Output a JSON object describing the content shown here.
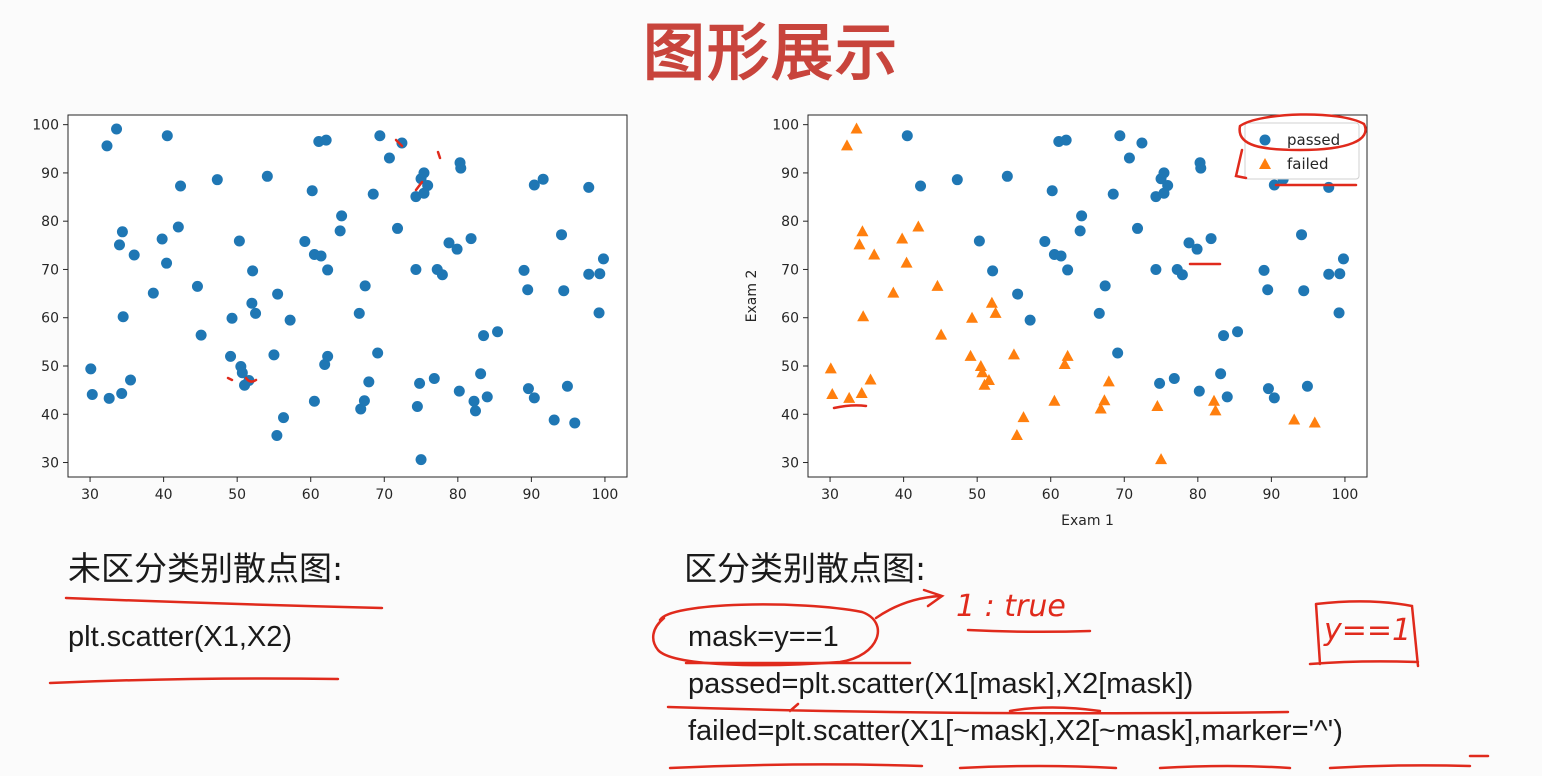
{
  "slide": {
    "title": "图形展示"
  },
  "left": {
    "caption": "未区分类别散点图:",
    "code": [
      "plt.scatter(X1,X2)"
    ]
  },
  "right": {
    "caption": "区分类别散点图:",
    "code": [
      "mask=y==1",
      "passed=plt.scatter(X1[mask],X2[mask])",
      "failed=plt.scatter(X1[~mask],X2[~mask],marker='^')"
    ]
  },
  "annotations": {
    "note1": "1 : true",
    "note2": "y==1"
  },
  "colors": {
    "passed": "#1f77b4",
    "failed": "#ff7f0e",
    "ink": "#e02a1c",
    "title": "#c8443c"
  },
  "chart_data": [
    {
      "type": "scatter",
      "title": "",
      "xlabel": "",
      "ylabel": "",
      "xlim": [
        27,
        103
      ],
      "ylim": [
        27,
        102
      ],
      "xticks": [
        30,
        40,
        50,
        60,
        70,
        80,
        90,
        100
      ],
      "yticks": [
        30,
        40,
        50,
        60,
        70,
        80,
        90,
        100
      ],
      "series": [
        {
          "marker": "circle",
          "color": "#1f77b4",
          "points": [
            [
              30.1,
              49.4
            ],
            [
              30.3,
              44.1
            ],
            [
              32.6,
              43.3
            ],
            [
              32.3,
              95.6
            ],
            [
              33.6,
              99.1
            ],
            [
              34.0,
              75.1
            ],
            [
              34.3,
              44.3
            ],
            [
              34.4,
              77.8
            ],
            [
              34.5,
              60.2
            ],
            [
              35.5,
              47.1
            ],
            [
              36.0,
              73.0
            ],
            [
              38.6,
              65.1
            ],
            [
              39.8,
              76.3
            ],
            [
              40.4,
              71.3
            ],
            [
              40.5,
              97.7
            ],
            [
              42.0,
              78.8
            ],
            [
              42.3,
              87.3
            ],
            [
              44.6,
              66.5
            ],
            [
              45.1,
              56.4
            ],
            [
              47.3,
              88.6
            ],
            [
              49.1,
              52.0
            ],
            [
              49.3,
              59.9
            ],
            [
              50.3,
              75.9
            ],
            [
              50.5,
              49.9
            ],
            [
              50.7,
              48.6
            ],
            [
              51.0,
              46.0
            ],
            [
              51.6,
              47.0
            ],
            [
              52.0,
              63.0
            ],
            [
              52.1,
              69.7
            ],
            [
              52.5,
              60.9
            ],
            [
              54.1,
              89.3
            ],
            [
              55.0,
              52.3
            ],
            [
              55.4,
              35.6
            ],
            [
              55.5,
              64.9
            ],
            [
              56.3,
              39.3
            ],
            [
              57.2,
              59.5
            ],
            [
              59.2,
              75.8
            ],
            [
              60.2,
              86.3
            ],
            [
              60.5,
              42.7
            ],
            [
              60.5,
              73.1
            ],
            [
              61.1,
              96.5
            ],
            [
              61.4,
              72.8
            ],
            [
              61.9,
              50.3
            ],
            [
              62.1,
              96.8
            ],
            [
              62.3,
              69.9
            ],
            [
              62.3,
              52.0
            ],
            [
              64.0,
              78.0
            ],
            [
              64.2,
              81.1
            ],
            [
              66.6,
              60.9
            ],
            [
              66.8,
              41.1
            ],
            [
              67.3,
              42.8
            ],
            [
              67.4,
              66.6
            ],
            [
              67.9,
              46.7
            ],
            [
              68.5,
              85.6
            ],
            [
              69.1,
              52.7
            ],
            [
              69.4,
              97.7
            ],
            [
              70.7,
              93.1
            ],
            [
              71.8,
              78.5
            ],
            [
              72.4,
              96.2
            ],
            [
              74.3,
              85.1
            ],
            [
              74.3,
              70.0
            ],
            [
              74.5,
              41.6
            ],
            [
              74.8,
              46.4
            ],
            [
              75.0,
              88.8
            ],
            [
              75.0,
              30.6
            ],
            [
              75.4,
              85.8
            ],
            [
              75.9,
              87.4
            ],
            [
              75.4,
              90.0
            ],
            [
              76.8,
              47.4
            ],
            [
              77.2,
              70.0
            ],
            [
              77.9,
              68.9
            ],
            [
              78.8,
              75.5
            ],
            [
              79.9,
              74.2
            ],
            [
              80.2,
              44.8
            ],
            [
              80.3,
              92.1
            ],
            [
              80.4,
              91.0
            ],
            [
              81.8,
              76.4
            ],
            [
              82.2,
              42.7
            ],
            [
              82.4,
              40.7
            ],
            [
              83.1,
              48.4
            ],
            [
              83.5,
              56.3
            ],
            [
              84.0,
              43.6
            ],
            [
              85.4,
              57.1
            ],
            [
              89.0,
              69.8
            ],
            [
              89.5,
              65.8
            ],
            [
              89.6,
              45.3
            ],
            [
              90.4,
              87.5
            ],
            [
              90.4,
              43.4
            ],
            [
              91.6,
              88.7
            ],
            [
              93.1,
              38.8
            ],
            [
              94.1,
              77.2
            ],
            [
              94.4,
              65.6
            ],
            [
              94.9,
              45.8
            ],
            [
              95.9,
              38.2
            ],
            [
              97.8,
              87.0
            ],
            [
              97.8,
              69.0
            ],
            [
              99.2,
              61.0
            ],
            [
              99.3,
              69.1
            ],
            [
              99.8,
              72.2
            ]
          ]
        }
      ]
    },
    {
      "type": "scatter",
      "title": "",
      "xlabel": "Exam 1",
      "ylabel": "Exam 2",
      "xlim": [
        27,
        103
      ],
      "ylim": [
        27,
        102
      ],
      "xticks": [
        30,
        40,
        50,
        60,
        70,
        80,
        90,
        100
      ],
      "yticks": [
        30,
        40,
        50,
        60,
        70,
        80,
        90,
        100
      ],
      "legend": "top-right",
      "series": [
        {
          "name": "passed",
          "marker": "circle",
          "color": "#1f77b4",
          "points": [
            [
              40.5,
              97.7
            ],
            [
              42.3,
              87.3
            ],
            [
              47.3,
              88.6
            ],
            [
              50.3,
              75.9
            ],
            [
              52.1,
              69.7
            ],
            [
              54.1,
              89.3
            ],
            [
              55.5,
              64.9
            ],
            [
              57.2,
              59.5
            ],
            [
              59.2,
              75.8
            ],
            [
              60.2,
              86.3
            ],
            [
              60.5,
              73.1
            ],
            [
              61.1,
              96.5
            ],
            [
              61.4,
              72.8
            ],
            [
              62.1,
              96.8
            ],
            [
              62.3,
              69.9
            ],
            [
              64.0,
              78.0
            ],
            [
              64.2,
              81.1
            ],
            [
              66.6,
              60.9
            ],
            [
              67.4,
              66.6
            ],
            [
              68.5,
              85.6
            ],
            [
              69.1,
              52.7
            ],
            [
              69.4,
              97.7
            ],
            [
              70.7,
              93.1
            ],
            [
              71.8,
              78.5
            ],
            [
              72.4,
              96.2
            ],
            [
              74.3,
              85.1
            ],
            [
              74.3,
              70.0
            ],
            [
              74.8,
              46.4
            ],
            [
              75.0,
              88.8
            ],
            [
              75.4,
              85.8
            ],
            [
              75.9,
              87.4
            ],
            [
              75.4,
              90.0
            ],
            [
              76.8,
              47.4
            ],
            [
              77.2,
              70.0
            ],
            [
              77.9,
              68.9
            ],
            [
              78.8,
              75.5
            ],
            [
              79.9,
              74.2
            ],
            [
              80.2,
              44.8
            ],
            [
              80.3,
              92.1
            ],
            [
              80.4,
              91.0
            ],
            [
              81.8,
              76.4
            ],
            [
              83.1,
              48.4
            ],
            [
              83.5,
              56.3
            ],
            [
              84.0,
              43.6
            ],
            [
              85.4,
              57.1
            ],
            [
              89.0,
              69.8
            ],
            [
              89.5,
              65.8
            ],
            [
              89.6,
              45.3
            ],
            [
              90.4,
              87.5
            ],
            [
              90.4,
              43.4
            ],
            [
              91.6,
              88.7
            ],
            [
              94.1,
              77.2
            ],
            [
              94.4,
              65.6
            ],
            [
              94.9,
              45.8
            ],
            [
              97.8,
              87.0
            ],
            [
              97.8,
              69.0
            ],
            [
              99.2,
              61.0
            ],
            [
              99.3,
              69.1
            ],
            [
              99.8,
              72.2
            ]
          ]
        },
        {
          "name": "failed",
          "marker": "triangle",
          "color": "#ff7f0e",
          "points": [
            [
              30.1,
              49.4
            ],
            [
              30.3,
              44.1
            ],
            [
              32.6,
              43.3
            ],
            [
              32.3,
              95.6
            ],
            [
              33.6,
              99.1
            ],
            [
              34.0,
              75.1
            ],
            [
              34.3,
              44.3
            ],
            [
              34.4,
              77.8
            ],
            [
              34.5,
              60.2
            ],
            [
              35.5,
              47.1
            ],
            [
              36.0,
              73.0
            ],
            [
              38.6,
              65.1
            ],
            [
              39.8,
              76.3
            ],
            [
              40.4,
              71.3
            ],
            [
              42.0,
              78.8
            ],
            [
              44.6,
              66.5
            ],
            [
              45.1,
              56.4
            ],
            [
              49.1,
              52.0
            ],
            [
              49.3,
              59.9
            ],
            [
              50.5,
              49.9
            ],
            [
              50.7,
              48.6
            ],
            [
              51.0,
              46.0
            ],
            [
              51.6,
              47.0
            ],
            [
              52.0,
              63.0
            ],
            [
              52.5,
              60.9
            ],
            [
              55.0,
              52.3
            ],
            [
              55.4,
              35.6
            ],
            [
              56.3,
              39.3
            ],
            [
              60.5,
              42.7
            ],
            [
              61.9,
              50.3
            ],
            [
              62.3,
              52.0
            ],
            [
              66.8,
              41.1
            ],
            [
              67.3,
              42.8
            ],
            [
              67.9,
              46.7
            ],
            [
              74.5,
              41.6
            ],
            [
              75.0,
              30.6
            ],
            [
              82.2,
              42.7
            ],
            [
              82.4,
              40.7
            ],
            [
              93.1,
              38.8
            ],
            [
              95.9,
              38.2
            ]
          ]
        }
      ]
    }
  ]
}
